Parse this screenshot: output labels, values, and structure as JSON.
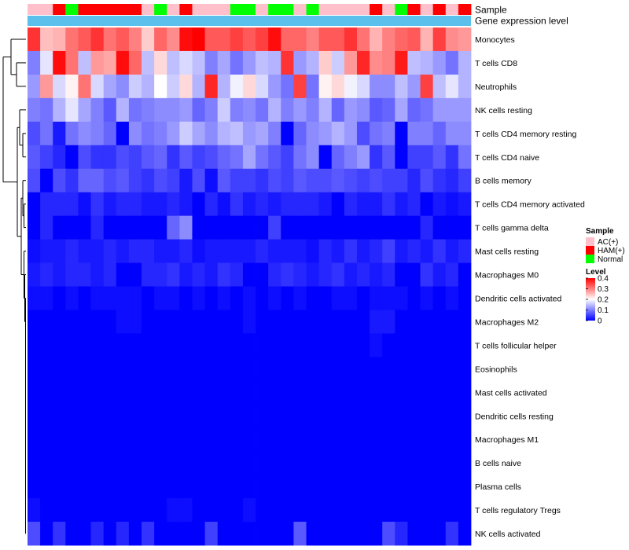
{
  "chart_data": {
    "type": "heatmap",
    "title": "",
    "top_annotation_labels": [
      "Sample",
      "Gene expression level"
    ],
    "row_labels": [
      "Monocytes",
      "T cells CD8",
      "Neutrophils",
      "NK cells resting",
      "T cells CD4 memory resting",
      "T cells CD4 naive",
      "B cells memory",
      "T cells CD4 memory activated",
      "T cells gamma delta",
      "Mast cells resting",
      "Macrophages M0",
      "Dendritic cells activated",
      "Macrophages M2",
      "T cells follicular helper",
      "Eosinophils",
      "Mast cells activated",
      "Dendritic cells resting",
      "Macrophages M1",
      "B cells naive",
      "Plasma cells",
      "T cells regulatory  Tregs",
      "NK cells activated"
    ],
    "sample_groups": [
      "AC",
      "AC",
      "HAM",
      "Normal",
      "HAM",
      "HAM",
      "HAM",
      "HAM",
      "HAM",
      "AC",
      "Normal",
      "AC",
      "HAM",
      "AC",
      "AC",
      "AC",
      "Normal",
      "Normal",
      "AC",
      "Normal",
      "Normal",
      "AC",
      "Normal",
      "AC",
      "AC",
      "AC",
      "AC",
      "HAM",
      "AC",
      "Normal",
      "HAM",
      "AC",
      "HAM",
      "AC",
      "HAM"
    ],
    "values": [
      [
        0.36,
        0.25,
        0.26,
        0.31,
        0.33,
        0.36,
        0.31,
        0.33,
        0.3,
        0.24,
        0.32,
        0.29,
        0.39,
        0.4,
        0.33,
        0.33,
        0.35,
        0.33,
        0.35,
        0.39,
        0.32,
        0.32,
        0.3,
        0.33,
        0.33,
        0.36,
        0.31,
        0.26,
        0.3,
        0.32,
        0.33,
        0.26,
        0.35,
        0.29,
        0.28
      ],
      [
        0.1,
        0.18,
        0.39,
        0.31,
        0.15,
        0.28,
        0.27,
        0.39,
        0.32,
        0.15,
        0.23,
        0.15,
        0.17,
        0.15,
        0.1,
        0.13,
        0.09,
        0.12,
        0.15,
        0.14,
        0.36,
        0.12,
        0.14,
        0.24,
        0.16,
        0.28,
        0.37,
        0.29,
        0.3,
        0.38,
        0.15,
        0.14,
        0.12,
        0.09,
        0.14
      ],
      [
        0.12,
        0.28,
        0.17,
        0.21,
        0.31,
        0.17,
        0.13,
        0.11,
        0.16,
        0.14,
        0.2,
        0.16,
        0.23,
        0.14,
        0.37,
        0.14,
        0.19,
        0.23,
        0.17,
        0.12,
        0.09,
        0.35,
        0.09,
        0.21,
        0.23,
        0.19,
        0.17,
        0.11,
        0.11,
        0.15,
        0.12,
        0.35,
        0.15,
        0.18,
        0.14
      ],
      [
        0.1,
        0.09,
        0.14,
        0.18,
        0.13,
        0.1,
        0.07,
        0.14,
        0.09,
        0.1,
        0.11,
        0.11,
        0.12,
        0.08,
        0.1,
        0.16,
        0.1,
        0.11,
        0.09,
        0.14,
        0.1,
        0.12,
        0.1,
        0.14,
        0.08,
        0.12,
        0.11,
        0.07,
        0.08,
        0.13,
        0.08,
        0.09,
        0.12,
        0.12,
        0.12
      ],
      [
        0.06,
        0.09,
        0.02,
        0.09,
        0.11,
        0.1,
        0.08,
        0.0,
        0.11,
        0.09,
        0.1,
        0.12,
        0.16,
        0.13,
        0.11,
        0.14,
        0.15,
        0.12,
        0.13,
        0.1,
        0.0,
        0.08,
        0.11,
        0.12,
        0.14,
        0.12,
        0.06,
        0.09,
        0.1,
        0.0,
        0.1,
        0.1,
        0.08,
        0.11,
        0.11
      ],
      [
        0.07,
        0.05,
        0.03,
        0.0,
        0.06,
        0.04,
        0.04,
        0.06,
        0.05,
        0.07,
        0.08,
        0.04,
        0.07,
        0.05,
        0.06,
        0.08,
        0.09,
        0.13,
        0.09,
        0.07,
        0.05,
        0.09,
        0.11,
        0.0,
        0.08,
        0.1,
        0.12,
        0.04,
        0.07,
        0.0,
        0.05,
        0.05,
        0.07,
        0.04,
        0.09
      ],
      [
        0.06,
        0.0,
        0.06,
        0.04,
        0.08,
        0.08,
        0.06,
        0.07,
        0.05,
        0.04,
        0.06,
        0.05,
        0.02,
        0.06,
        0.01,
        0.07,
        0.05,
        0.05,
        0.04,
        0.06,
        0.05,
        0.07,
        0.06,
        0.06,
        0.07,
        0.06,
        0.05,
        0.06,
        0.05,
        0.05,
        0.03,
        0.06,
        0.04,
        0.03,
        0.05
      ],
      [
        0.0,
        0.03,
        0.03,
        0.03,
        0.01,
        0.04,
        0.02,
        0.03,
        0.03,
        0.02,
        0.02,
        0.03,
        0.02,
        0.0,
        0.03,
        0.01,
        0.04,
        0.02,
        0.03,
        0.02,
        0.03,
        0.03,
        0.03,
        0.02,
        0.0,
        0.03,
        0.02,
        0.02,
        0.04,
        0.02,
        0.03,
        0.0,
        0.02,
        0.01,
        0.02
      ],
      [
        0.0,
        0.03,
        0.0,
        0.0,
        0.0,
        0.03,
        0.0,
        0.0,
        0.0,
        0.0,
        0.0,
        0.08,
        0.11,
        0.0,
        0.0,
        0.0,
        0.0,
        0.0,
        0.0,
        0.05,
        0.0,
        0.0,
        0.0,
        0.0,
        0.0,
        0.0,
        0.0,
        0.0,
        0.0,
        0.0,
        0.0,
        0.03,
        0.0,
        0.0,
        0.0
      ],
      [
        0.01,
        0.02,
        0.02,
        0.03,
        0.02,
        0.02,
        0.03,
        0.02,
        0.03,
        0.03,
        0.02,
        0.02,
        0.03,
        0.01,
        0.02,
        0.02,
        0.02,
        0.02,
        0.03,
        0.02,
        0.02,
        0.02,
        0.01,
        0.03,
        0.02,
        0.04,
        0.02,
        0.03,
        0.05,
        0.02,
        0.03,
        0.02,
        0.04,
        0.02,
        0.03
      ],
      [
        0.02,
        0.03,
        0.02,
        0.03,
        0.03,
        0.02,
        0.03,
        0.0,
        0.0,
        0.03,
        0.03,
        0.04,
        0.02,
        0.03,
        0.02,
        0.04,
        0.03,
        0.0,
        0.0,
        0.03,
        0.04,
        0.03,
        0.02,
        0.03,
        0.04,
        0.02,
        0.03,
        0.02,
        0.03,
        0.0,
        0.0,
        0.04,
        0.02,
        0.03,
        0.0
      ],
      [
        0.01,
        0.01,
        0.0,
        0.01,
        0.0,
        0.01,
        0.01,
        0.01,
        0.01,
        0.0,
        0.01,
        0.01,
        0.0,
        0.01,
        0.0,
        0.01,
        0.0,
        0.01,
        0.0,
        0.01,
        0.0,
        0.01,
        0.0,
        0.0,
        0.01,
        0.01,
        0.0,
        0.01,
        0.01,
        0.01,
        0.0,
        0.01,
        0.0,
        0.01,
        0.0
      ],
      [
        0.0,
        0.0,
        0.0,
        0.0,
        0.0,
        0.0,
        0.0,
        0.01,
        0.01,
        0.0,
        0.0,
        0.0,
        0.0,
        0.0,
        0.0,
        0.0,
        0.0,
        0.01,
        0.0,
        0.0,
        0.0,
        0.0,
        0.0,
        0.0,
        0.0,
        0.0,
        0.0,
        0.02,
        0.02,
        0.0,
        0.0,
        0.0,
        0.0,
        0.0,
        0.0
      ],
      [
        0.0,
        0.0,
        0.0,
        0.0,
        0.0,
        0.0,
        0.0,
        0.0,
        0.0,
        0.0,
        0.0,
        0.0,
        0.0,
        0.0,
        0.0,
        0.0,
        0.0,
        0.0,
        0.0,
        0.0,
        0.0,
        0.0,
        0.0,
        0.0,
        0.0,
        0.0,
        0.0,
        0.01,
        0.0,
        0.0,
        0.0,
        0.0,
        0.0,
        0.0,
        0.0
      ],
      [
        0.0,
        0.0,
        0.0,
        0.0,
        0.0,
        0.0,
        0.0,
        0.0,
        0.0,
        0.0,
        0.0,
        0.0,
        0.0,
        0.0,
        0.0,
        0.0,
        0.0,
        0.0,
        0.0,
        0.0,
        0.0,
        0.0,
        0.0,
        0.0,
        0.0,
        0.0,
        0.0,
        0.0,
        0.0,
        0.0,
        0.0,
        0.0,
        0.0,
        0.0,
        0.0
      ],
      [
        0.0,
        0.0,
        0.0,
        0.0,
        0.0,
        0.0,
        0.0,
        0.0,
        0.0,
        0.0,
        0.0,
        0.0,
        0.0,
        0.0,
        0.0,
        0.0,
        0.0,
        0.0,
        0.0,
        0.0,
        0.0,
        0.0,
        0.0,
        0.0,
        0.0,
        0.0,
        0.0,
        0.0,
        0.0,
        0.0,
        0.0,
        0.0,
        0.0,
        0.0,
        0.0
      ],
      [
        0.0,
        0.0,
        0.0,
        0.0,
        0.0,
        0.0,
        0.0,
        0.0,
        0.0,
        0.0,
        0.0,
        0.0,
        0.0,
        0.0,
        0.0,
        0.0,
        0.0,
        0.0,
        0.0,
        0.0,
        0.0,
        0.0,
        0.0,
        0.0,
        0.0,
        0.0,
        0.0,
        0.0,
        0.0,
        0.0,
        0.0,
        0.0,
        0.0,
        0.0,
        0.0
      ],
      [
        0.0,
        0.0,
        0.0,
        0.0,
        0.0,
        0.0,
        0.0,
        0.0,
        0.0,
        0.0,
        0.0,
        0.0,
        0.0,
        0.0,
        0.0,
        0.0,
        0.0,
        0.0,
        0.0,
        0.0,
        0.0,
        0.0,
        0.0,
        0.0,
        0.0,
        0.0,
        0.0,
        0.0,
        0.0,
        0.0,
        0.0,
        0.0,
        0.0,
        0.0,
        0.0
      ],
      [
        0.0,
        0.0,
        0.0,
        0.0,
        0.0,
        0.0,
        0.0,
        0.0,
        0.0,
        0.0,
        0.0,
        0.0,
        0.0,
        0.0,
        0.0,
        0.0,
        0.0,
        0.0,
        0.0,
        0.0,
        0.0,
        0.0,
        0.0,
        0.0,
        0.0,
        0.0,
        0.0,
        0.0,
        0.0,
        0.0,
        0.0,
        0.0,
        0.0,
        0.0,
        0.0
      ],
      [
        0.0,
        0.0,
        0.0,
        0.0,
        0.0,
        0.0,
        0.0,
        0.0,
        0.0,
        0.0,
        0.0,
        0.0,
        0.0,
        0.0,
        0.0,
        0.0,
        0.0,
        0.0,
        0.0,
        0.0,
        0.0,
        0.0,
        0.0,
        0.0,
        0.0,
        0.0,
        0.0,
        0.0,
        0.0,
        0.0,
        0.0,
        0.0,
        0.0,
        0.0,
        0.0
      ],
      [
        0.01,
        0.0,
        0.0,
        0.0,
        0.0,
        0.0,
        0.0,
        0.0,
        0.0,
        0.0,
        0.0,
        0.01,
        0.01,
        0.0,
        0.0,
        0.0,
        0.0,
        0.01,
        0.0,
        0.0,
        0.0,
        0.0,
        0.0,
        0.0,
        0.0,
        0.0,
        0.0,
        0.0,
        0.0,
        0.0,
        0.0,
        0.0,
        0.0,
        0.0,
        0.0
      ],
      [
        0.06,
        0.0,
        0.04,
        0.0,
        0.0,
        0.03,
        0.0,
        0.03,
        0.0,
        0.04,
        0.0,
        0.0,
        0.0,
        0.0,
        0.05,
        0.0,
        0.0,
        0.0,
        0.0,
        0.0,
        0.0,
        0.07,
        0.0,
        0.0,
        0.0,
        0.0,
        0.0,
        0.0,
        0.06,
        0.03,
        0.0,
        0.0,
        0.0,
        0.04,
        0.0
      ]
    ],
    "color_scale": {
      "title": "Level",
      "min": 0,
      "max": 0.4,
      "ticks": [
        "0",
        "0.1",
        "0.2",
        "0.3",
        "0.4"
      ],
      "low_color": "#0000ff",
      "mid_color": "#ffffff",
      "high_color": "#ff0000"
    },
    "gene_expression_color": "#5bc0eb",
    "legend": {
      "title": "Sample",
      "entries": [
        {
          "key": "AC",
          "label": "AC(+)",
          "color": "#ffc0cb"
        },
        {
          "key": "HAM",
          "label": "HAM(+)",
          "color": "#ff0000"
        },
        {
          "key": "Normal",
          "label": "Normal",
          "color": "#00ff00"
        }
      ]
    }
  }
}
